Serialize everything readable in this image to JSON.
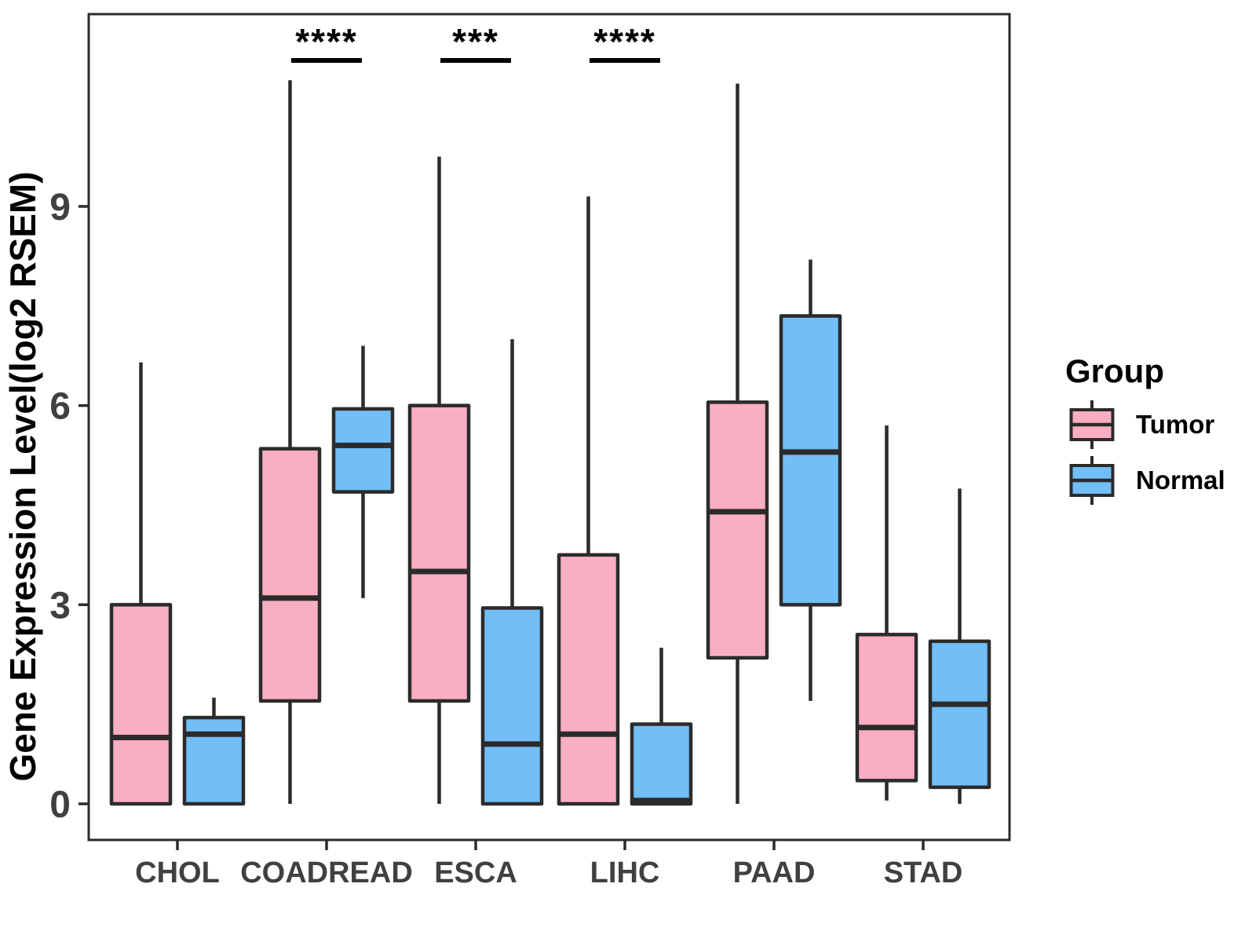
{
  "page": {
    "background": "#FFFFFF"
  },
  "figure": {
    "y_axis_title": "Gene Expression Level(log2 RSEM)",
    "legend": {
      "title": "Group"
    }
  },
  "colors": {
    "tumor_fill": "#FAAEC1",
    "normal_fill": "#72BEF6",
    "box_border": "#2B2B2B",
    "axis_line": "#2B2B2B",
    "axis_text": "#404040",
    "axis_title": "#000000",
    "significance": "#000000",
    "legend_text": "#000000"
  },
  "chart_data": {
    "type": "grouped_boxplot",
    "title": "",
    "xlabel": "",
    "ylabel": "Gene Expression Level(log2 RSEM)",
    "yticks": [
      0,
      3,
      6,
      9
    ],
    "ylim": [
      -0.55,
      11.9
    ],
    "grid": false,
    "legend_position": "right",
    "legend_title": "Group",
    "categories": [
      "CHOL",
      "COADREAD",
      "ESCA",
      "LIHC",
      "PAAD",
      "STAD"
    ],
    "series": [
      {
        "name": "Tumor",
        "color": "#FAAEC1",
        "stats": [
          {
            "min": 0,
            "q1": 0,
            "median": 1.0,
            "q3": 3.0,
            "max": 6.65
          },
          {
            "min": 0,
            "q1": 1.55,
            "median": 3.1,
            "q3": 5.35,
            "max": 10.9
          },
          {
            "min": 0,
            "q1": 1.55,
            "median": 3.5,
            "q3": 6.0,
            "max": 9.75
          },
          {
            "min": 0,
            "q1": 0,
            "median": 1.05,
            "q3": 3.75,
            "max": 9.15
          },
          {
            "min": 0,
            "q1": 2.2,
            "median": 4.4,
            "q3": 6.05,
            "max": 10.85
          },
          {
            "min": 0.05,
            "q1": 0.35,
            "median": 1.15,
            "q3": 2.55,
            "max": 5.7
          }
        ]
      },
      {
        "name": "Normal",
        "color": "#72BEF6",
        "stats": [
          {
            "min": 0,
            "q1": 0,
            "median": 1.05,
            "q3": 1.3,
            "max": 1.6
          },
          {
            "min": 3.1,
            "q1": 4.7,
            "median": 5.4,
            "q3": 5.95,
            "max": 6.9
          },
          {
            "min": 0,
            "q1": 0,
            "median": 0.9,
            "q3": 2.95,
            "max": 7.0
          },
          {
            "min": 0,
            "q1": 0,
            "median": 0.05,
            "q3": 1.2,
            "max": 2.35
          },
          {
            "min": 1.55,
            "q1": 3.0,
            "median": 5.3,
            "q3": 7.35,
            "max": 8.2
          },
          {
            "min": 0,
            "q1": 0.25,
            "median": 1.5,
            "q3": 2.45,
            "max": 4.75
          }
        ]
      }
    ],
    "significance": [
      {
        "category": "COADREAD",
        "label": "****"
      },
      {
        "category": "ESCA",
        "label": "***"
      },
      {
        "category": "LIHC",
        "label": "****"
      }
    ]
  }
}
